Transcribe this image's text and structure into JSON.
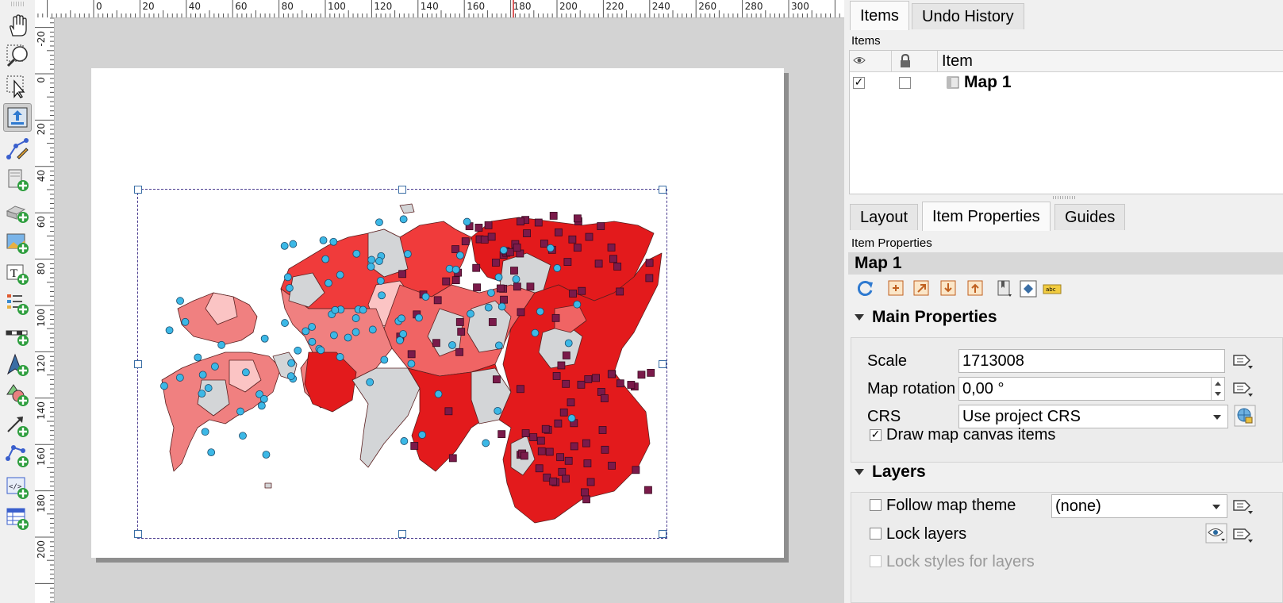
{
  "toolbar": {
    "tools": [
      {
        "name": "pan-layout-icon"
      },
      {
        "name": "zoom-icon"
      },
      {
        "name": "select-move-item-icon"
      },
      {
        "name": "move-item-content-icon"
      },
      {
        "name": "edit-nodes-icon"
      },
      {
        "name": "add-map-icon"
      },
      {
        "name": "add-3d-map-icon"
      },
      {
        "name": "add-picture-icon"
      },
      {
        "name": "add-label-icon"
      },
      {
        "name": "add-legend-icon"
      },
      {
        "name": "add-scalebar-icon"
      },
      {
        "name": "add-north-arrow-icon"
      },
      {
        "name": "add-shape-icon"
      },
      {
        "name": "add-arrow-icon"
      },
      {
        "name": "add-node-item-icon"
      },
      {
        "name": "add-html-icon"
      },
      {
        "name": "add-attribute-table-icon"
      }
    ]
  },
  "ruler": {
    "top_labels": [
      "0",
      "20",
      "40",
      "60",
      "80",
      "100",
      "120",
      "140",
      "160",
      "180",
      "200",
      "220",
      "240",
      "260",
      "280",
      "300"
    ],
    "left_labels": [
      "-20",
      "0",
      "20",
      "40",
      "60",
      "80",
      "100",
      "120",
      "140",
      "160",
      "180",
      "200"
    ]
  },
  "panel": {
    "tabs": [
      "Items",
      "Undo History"
    ],
    "items_caption": "Items",
    "items_columns": {
      "item": "Item"
    },
    "items_rows": [
      {
        "name": "Map 1",
        "visible": true,
        "locked": false
      }
    ],
    "lower_tabs": [
      "Layout",
      "Item Properties",
      "Guides"
    ],
    "item_properties_caption": "Item Properties",
    "item_title": "Map 1",
    "main_properties": {
      "heading": "Main Properties",
      "scale_label": "Scale",
      "scale_value": "1713008",
      "rotation_label": "Map rotation",
      "rotation_value": "0,00 °",
      "crs_label": "CRS",
      "crs_value": "Use project CRS",
      "draw_canvas_items_label": "Draw map canvas items",
      "draw_canvas_items_checked": true
    },
    "layers": {
      "heading": "Layers",
      "follow_theme_label": "Follow map theme",
      "follow_theme_value": "(none)",
      "lock_layers_label": "Lock layers",
      "lock_styles_label": "Lock styles for layers"
    }
  },
  "colors": {
    "map_dark_red": "#e31a1c",
    "map_mid_red": "#f03b3b",
    "map_light_red": "#f08080",
    "map_pale": "#fbc4c4",
    "map_grey": "#d3d5d7",
    "point_circle": "#3cb8e6",
    "point_square": "#7a1a4a"
  }
}
